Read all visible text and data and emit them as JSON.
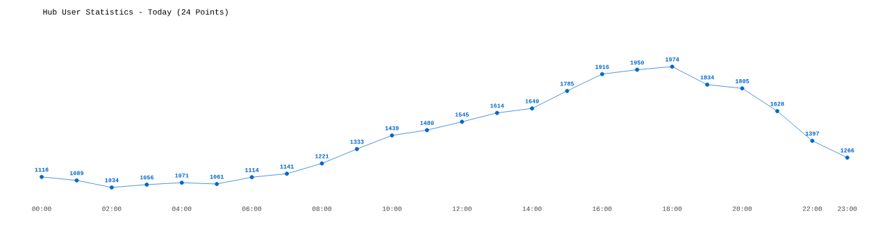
{
  "chart_data": {
    "type": "line",
    "title": "Hub User Statistics - Today (24 Points)",
    "categories": [
      "00:00",
      null,
      "02:00",
      null,
      "04:00",
      null,
      "06:00",
      null,
      "08:00",
      null,
      "10:00",
      null,
      "12:00",
      null,
      "14:00",
      null,
      "16:00",
      null,
      "18:00",
      null,
      "20:00",
      null,
      "22:00",
      "23:00"
    ],
    "series": [
      {
        "color": "#0066cc",
        "values": [
          1116,
          1089,
          1034,
          1056,
          1071,
          1061,
          1114,
          1141,
          1221,
          1333,
          1439,
          1480,
          1545,
          1614,
          1649,
          1785,
          1916,
          1950,
          1974,
          1834,
          1805,
          1628,
          1397,
          1266
        ]
      }
    ],
    "data_labels": true,
    "marker": "circle",
    "line_style": "solid"
  }
}
